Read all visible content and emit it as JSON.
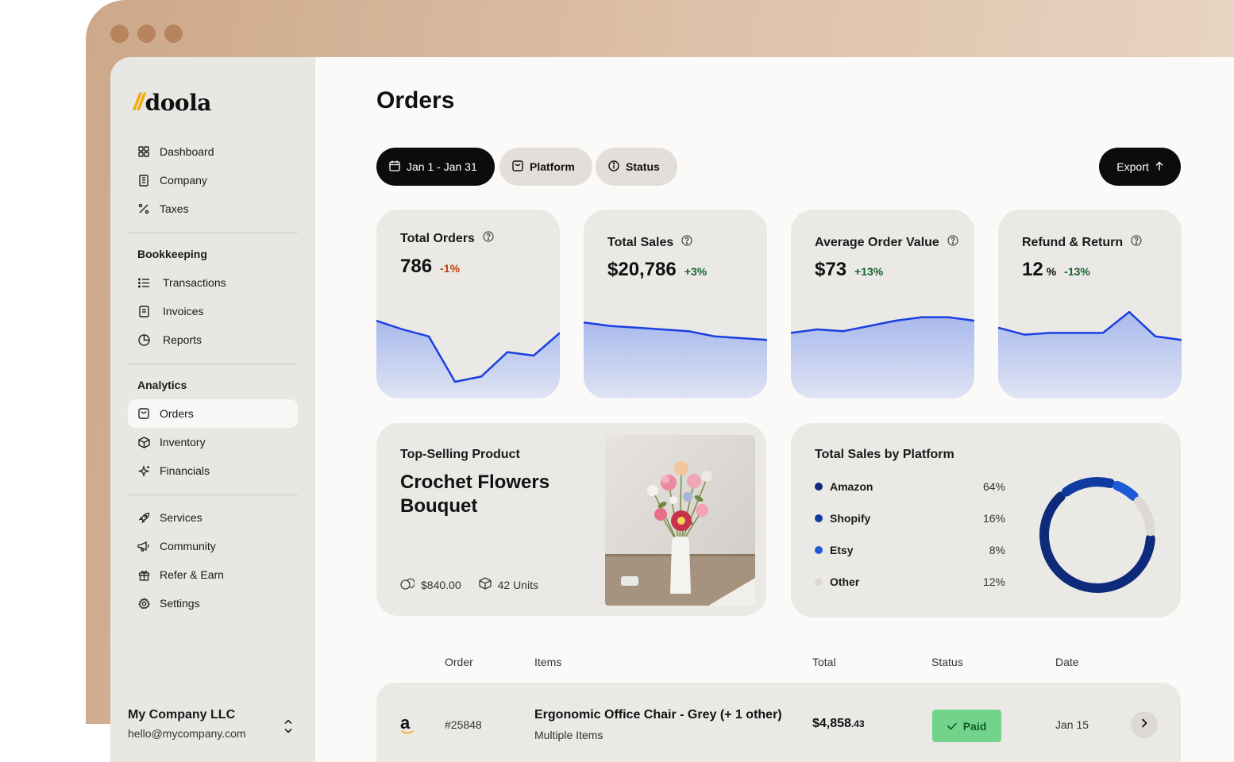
{
  "brand": {
    "logo_mark": "//",
    "logo_text": "doola",
    "accent": "#f2a900"
  },
  "sidebar": {
    "top_items": [
      {
        "label": "Dashboard",
        "icon": "grid-icon"
      },
      {
        "label": "Company",
        "icon": "building-icon"
      },
      {
        "label": "Taxes",
        "icon": "percent-icon"
      }
    ],
    "bookkeeping_title": "Bookkeeping",
    "bookkeeping_items": [
      {
        "label": "Transactions",
        "icon": "list-icon"
      },
      {
        "label": "Invoices",
        "icon": "invoice-icon"
      },
      {
        "label": "Reports",
        "icon": "pie-icon"
      }
    ],
    "analytics_title": "Analytics",
    "analytics_items": [
      {
        "label": "Orders",
        "icon": "orders-icon",
        "active": true
      },
      {
        "label": "Inventory",
        "icon": "box-icon"
      },
      {
        "label": "Financials",
        "icon": "sparkle-icon"
      }
    ],
    "bottom_items": [
      {
        "label": "Services",
        "icon": "rocket-icon"
      },
      {
        "label": "Community",
        "icon": "megaphone-icon"
      },
      {
        "label": "Refer & Earn",
        "icon": "gift-icon"
      },
      {
        "label": "Settings",
        "icon": "gear-icon"
      }
    ],
    "company": {
      "name": "My Company LLC",
      "email": "hello@mycompany.com"
    }
  },
  "page": {
    "title": "Orders"
  },
  "filters": {
    "date_range": "Jan 1 - Jan 31",
    "platform": "Platform",
    "status": "Status",
    "export": "Export"
  },
  "kpis": [
    {
      "title": "Total Orders",
      "value": "786",
      "unit": "",
      "delta": "-1%",
      "trend": "negative",
      "series": [
        4.0,
        3.5,
        3.1,
        0.5,
        0.8,
        2.2,
        2.0,
        3.3
      ]
    },
    {
      "title": "Total Sales",
      "value": "$20,786",
      "unit": "",
      "delta": "+3%",
      "trend": "positive",
      "series": [
        3.9,
        3.7,
        3.6,
        3.5,
        3.4,
        3.1,
        3.0,
        2.9
      ]
    },
    {
      "title": "Average Order Value",
      "value": "$73",
      "unit": "",
      "delta": "+13%",
      "trend": "positive",
      "series": [
        3.3,
        3.5,
        3.4,
        3.7,
        4.0,
        4.2,
        4.2,
        4.0
      ]
    },
    {
      "title": "Refund & Return",
      "value": "12",
      "unit": "%",
      "delta": "-13%",
      "trend": "positive",
      "series": [
        3.6,
        3.2,
        3.3,
        3.3,
        3.3,
        4.5,
        3.1,
        2.9
      ]
    }
  ],
  "top_selling": {
    "label": "Top-Selling Product",
    "name": "Crochet Flowers Bouquet",
    "revenue": "$840.00",
    "units": "42 Units"
  },
  "platforms": {
    "title": "Total Sales by Platform",
    "items": [
      {
        "name": "Amazon",
        "value": "64%",
        "pct": 64,
        "color": "#0e2a7a"
      },
      {
        "name": "Shopify",
        "value": "16%",
        "pct": 16,
        "color": "#0f3aa0"
      },
      {
        "name": "Etsy",
        "value": "8%",
        "pct": 8,
        "color": "#1f5ad6"
      },
      {
        "name": "Other",
        "value": "12%",
        "pct": 12,
        "color": "#dcd9d5"
      }
    ]
  },
  "table": {
    "headers": {
      "order": "Order",
      "items": "Items",
      "total": "Total",
      "status": "Status",
      "date": "Date"
    },
    "rows": [
      {
        "platform_icon": "amazon-icon",
        "platform_glyph": "a",
        "order": "#25848",
        "item": "Ergonomic Office Chair - Grey (+ 1 other)",
        "sub": "Multiple Items",
        "total_main": "$4,858",
        "total_cents": ".43",
        "status": "Paid",
        "date": "Jan 15"
      }
    ]
  }
}
